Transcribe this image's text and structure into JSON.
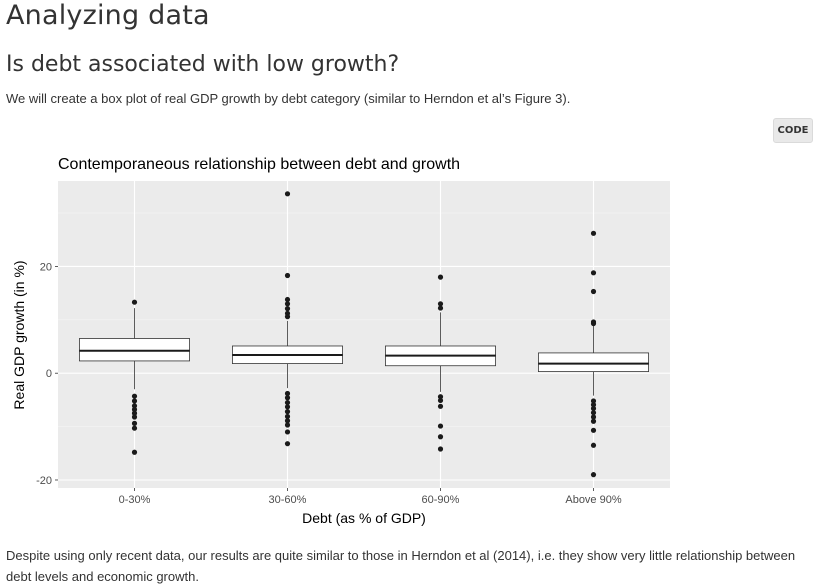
{
  "page": {
    "title": "Analyzing data",
    "section_heading": "Is debt associated with low growth?",
    "intro_text": "We will create a box plot of real GDP growth by debt category (similar to Herndon et al’s Figure 3).",
    "code_button_label": "CODE",
    "conclusion_text": "Despite using only recent data, our results are quite similar to those in Herndon et al (2014), i.e. they show very little relationship between debt levels and economic growth."
  },
  "chart_data": {
    "type": "box",
    "title": "Contemporaneous relationship between debt and growth",
    "xlabel": "Debt (as % of GDP)",
    "ylabel": "Real GDP growth (in %)",
    "ylim": [
      -21.5,
      36
    ],
    "yticks": [
      -20,
      0,
      20
    ],
    "grid": true,
    "categories": [
      "0-30%",
      "30-60%",
      "60-90%",
      "Above 90%"
    ],
    "boxes": [
      {
        "category": "0-30%",
        "whisker_low": -3,
        "q1": 2.3,
        "median": 4.2,
        "q3": 6.5,
        "whisker_high": 12.2,
        "outliers": [
          13.3,
          -4.3,
          -5.2,
          -6.1,
          -6.8,
          -7.5,
          -8.2,
          -9.4,
          -10.3,
          -14.8
        ]
      },
      {
        "category": "30-60%",
        "whisker_low": -2.8,
        "q1": 1.8,
        "median": 3.4,
        "q3": 5.1,
        "whisker_high": 9.8,
        "outliers": [
          33.6,
          18.3,
          13.8,
          13.0,
          12.1,
          11.2,
          10.6,
          -3.8,
          -4.6,
          -5.5,
          -6.3,
          -7.2,
          -8.1,
          -8.9,
          -9.7,
          -11.0,
          -13.2
        ]
      },
      {
        "category": "60-90%",
        "whisker_low": -3.5,
        "q1": 1.4,
        "median": 3.3,
        "q3": 5.1,
        "whisker_high": 11.4,
        "outliers": [
          18.0,
          13.0,
          12.2,
          -4.4,
          -5.1,
          -6.2,
          -9.9,
          -11.9,
          -14.2
        ]
      },
      {
        "category": "Above 90%",
        "whisker_low": -4.2,
        "q1": 0.3,
        "median": 1.8,
        "q3": 3.8,
        "whisker_high": 9.0,
        "outliers": [
          26.2,
          18.8,
          15.3,
          9.6,
          9.3,
          -5.2,
          -5.9,
          -6.6,
          -7.4,
          -8.2,
          -9.0,
          -10.7,
          -13.5,
          -19.0
        ]
      }
    ]
  }
}
